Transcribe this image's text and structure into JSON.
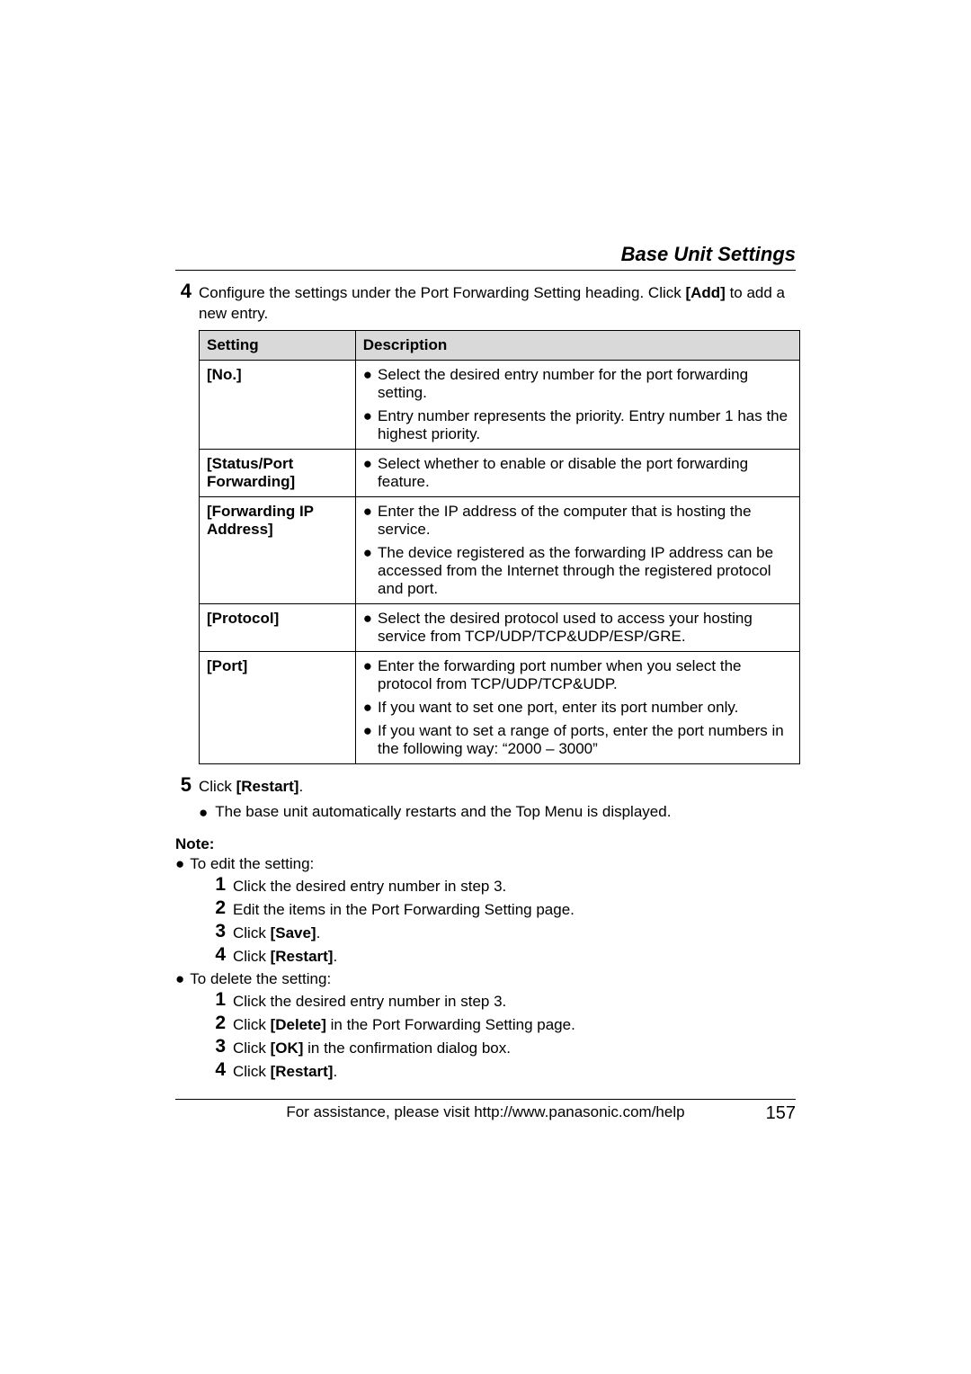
{
  "header": {
    "section_title": "Base Unit Settings"
  },
  "steps": {
    "s4_num": "4",
    "s4_text_a": "Configure the settings under the Port Forwarding Setting heading. Click ",
    "s4_bold": "[Add]",
    "s4_text_b": " to add a new entry.",
    "s5_num": "5",
    "s5_text_a": "Click ",
    "s5_bold": "[Restart]",
    "s5_text_b": ".",
    "s5_sub_bullet": "The base unit automatically restarts and the Top Menu is displayed."
  },
  "table": {
    "h1": "Setting",
    "h2": "Description",
    "rows": [
      {
        "label": "[No.]",
        "bullets": [
          "Select the desired entry number for the port forwarding setting.",
          "Entry number represents the priority. Entry number 1 has the highest priority."
        ]
      },
      {
        "label": "[Status/Port Forwarding]",
        "bullets": [
          "Select whether to enable or disable the port forwarding feature."
        ]
      },
      {
        "label": "[Forwarding IP Address]",
        "bullets": [
          "Enter the IP address of the computer that is hosting the service.",
          "The device registered as the forwarding IP address can be accessed from the Internet through the registered protocol and port."
        ]
      },
      {
        "label": "[Protocol]",
        "bullets": [
          "Select the desired protocol used to access your hosting service from TCP/UDP/TCP&UDP/ESP/GRE."
        ]
      },
      {
        "label": "[Port]",
        "bullets": [
          "Enter the forwarding port number when you select the protocol from TCP/UDP/TCP&UDP.",
          "If you want to set one port, enter its port number only.",
          "If you want to set a range of ports, enter the port numbers in the following way: “2000 – 3000”"
        ]
      }
    ]
  },
  "note": {
    "label": "Note:",
    "edit_intro": "To edit the setting:",
    "edit_steps": [
      {
        "n": "1",
        "t": "Click the desired entry number in step 3."
      },
      {
        "n": "2",
        "t": "Edit the items in the Port Forwarding Setting page."
      },
      {
        "n": "3",
        "pre": "Click ",
        "b": "[Save]",
        "post": "."
      },
      {
        "n": "4",
        "pre": "Click ",
        "b": "[Restart]",
        "post": "."
      }
    ],
    "delete_intro": "To delete the setting:",
    "delete_steps": [
      {
        "n": "1",
        "t": "Click the desired entry number in step 3."
      },
      {
        "n": "2",
        "pre": "Click ",
        "b": "[Delete]",
        "post": " in the Port Forwarding Setting page."
      },
      {
        "n": "3",
        "pre": "Click ",
        "b": "[OK]",
        "post": " in the confirmation dialog box."
      },
      {
        "n": "4",
        "pre": "Click ",
        "b": "[Restart]",
        "post": "."
      }
    ]
  },
  "footer": {
    "help_text": "For assistance, please visit http://www.panasonic.com/help",
    "page_number": "157"
  }
}
